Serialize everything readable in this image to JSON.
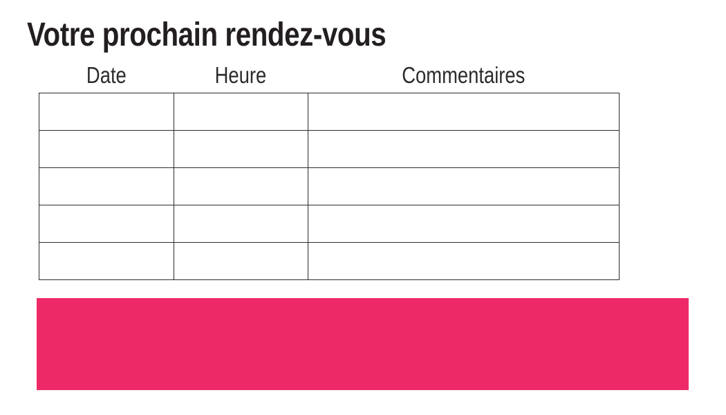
{
  "page": {
    "title": "Votre prochain rendez-vous",
    "background_color": "#ffffff",
    "text_color": "#231f20"
  },
  "table": {
    "headers": [
      "Date",
      "Heure",
      "Commentaires"
    ],
    "border_color": "#2d2a2b",
    "rows": [
      {
        "date": "",
        "heure": "",
        "commentaires": ""
      },
      {
        "date": "",
        "heure": "",
        "commentaires": ""
      },
      {
        "date": "",
        "heure": "",
        "commentaires": ""
      },
      {
        "date": "",
        "heure": "",
        "commentaires": ""
      },
      {
        "date": "",
        "heure": "",
        "commentaires": ""
      }
    ]
  },
  "banner": {
    "text": "",
    "color": "#ED2A67"
  }
}
